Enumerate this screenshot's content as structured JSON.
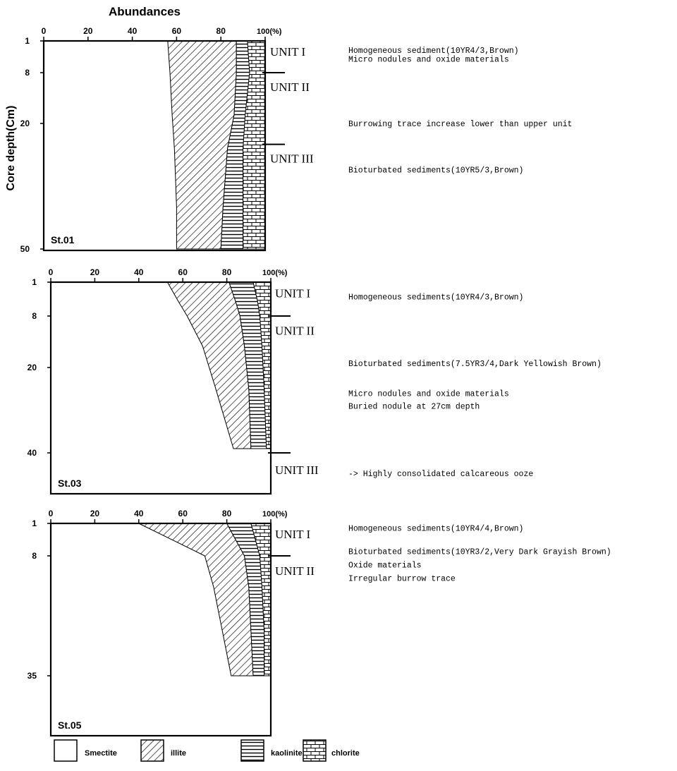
{
  "colors": {
    "ink": "#000000",
    "paper": "#ffffff"
  },
  "pattern_names": {
    "illite": "diagonal-hatch",
    "kaolinite": "horizontal-lines",
    "chlorite": "brick"
  },
  "chart_data": {
    "type": "area",
    "title": "Abundances",
    "ylabel": "Core depth(Cm)",
    "x_unit_label": "(%)",
    "layers": [
      "Smectite",
      "illite",
      "kaolinite",
      "chlorite"
    ],
    "stacking": "cumulative boundaries (%) from left: smectite | illite | kaolinite | chlorite",
    "legend": {
      "placement": "bottom",
      "items": [
        {
          "name": "Smectite",
          "pattern": "blank"
        },
        {
          "name": "illite",
          "pattern": "diagonal-hatch"
        },
        {
          "name": "kaolinite",
          "pattern": "horizontal-lines"
        },
        {
          "name": "chlorite",
          "pattern": "brick"
        }
      ]
    },
    "panels": [
      {
        "station": "St.01",
        "xlim": [
          0,
          100
        ],
        "x_ticks": [
          0,
          20,
          40,
          60,
          80,
          "100(%)"
        ],
        "y_ticks": [
          1,
          8,
          20,
          50
        ],
        "ylim": [
          1,
          50
        ],
        "boundaries": [
          {
            "depth": 1,
            "smectite_top": 56,
            "illite_top": 87,
            "kaolinite_top": 92
          },
          {
            "depth": 8,
            "smectite_top": 57,
            "illite_top": 87,
            "kaolinite_top": 93
          },
          {
            "depth": 18,
            "smectite_top": 58,
            "illite_top": 86,
            "kaolinite_top": 91
          },
          {
            "depth": 26,
            "smectite_top": 59,
            "illite_top": 83,
            "kaolinite_top": 90
          },
          {
            "depth": 40,
            "smectite_top": 60,
            "illite_top": 81,
            "kaolinite_top": 90
          },
          {
            "depth": 50,
            "smectite_top": 60,
            "illite_top": 80,
            "kaolinite_top": 90
          }
        ],
        "units": [
          {
            "label": "UNIT I",
            "top": 1,
            "bottom": 8
          },
          {
            "label": "UNIT II",
            "top": 8,
            "bottom": 25
          },
          {
            "label": "UNIT III",
            "top": 25,
            "bottom": 50
          }
        ],
        "descriptions": [
          {
            "depth": 3,
            "text": "Homogeneous sediment(10YR4/3,Brown)"
          },
          {
            "depth": 5,
            "text": "Micro nodules and oxide materials"
          },
          {
            "depth": 20,
            "text": "Burrowing trace increase lower than upper unit"
          },
          {
            "depth": 31,
            "text": "Bioturbated sediments(10YR5/3,Brown)"
          }
        ]
      },
      {
        "station": "St.03",
        "xlim": [
          0,
          100
        ],
        "x_ticks": [
          0,
          20,
          40,
          60,
          80,
          "100(%)"
        ],
        "y_ticks": [
          1,
          8,
          20,
          40
        ],
        "ylim": [
          1,
          48
        ],
        "boundaries": [
          {
            "depth": 1,
            "smectite_top": 53,
            "illite_top": 81,
            "kaolinite_top": 92
          },
          {
            "depth": 5,
            "smectite_top": 58,
            "illite_top": 84,
            "kaolinite_top": 94
          },
          {
            "depth": 8,
            "smectite_top": 62,
            "illite_top": 86,
            "kaolinite_top": 95
          },
          {
            "depth": 15,
            "smectite_top": 69,
            "illite_top": 88,
            "kaolinite_top": 96
          },
          {
            "depth": 25,
            "smectite_top": 75,
            "illite_top": 90,
            "kaolinite_top": 97
          },
          {
            "depth": 39,
            "smectite_top": 83,
            "illite_top": 91,
            "kaolinite_top": 98
          }
        ],
        "units": [
          {
            "label": "UNIT I",
            "top": 1,
            "bottom": 8
          },
          {
            "label": "UNIT II",
            "top": 8,
            "bottom": 40
          },
          {
            "label": "UNIT III",
            "top": 40,
            "bottom": 48
          }
        ],
        "descriptions": [
          {
            "depth": 4,
            "text": "Homogeneous sediments(10YR4/3,Brown)"
          },
          {
            "depth": 19,
            "text": "Bioturbated sediments(7.5YR3/4,Dark Yellowish Brown)"
          },
          {
            "depth": 26,
            "text": "Micro nodules and oxide materials"
          },
          {
            "depth": 29,
            "text": "Buried nodule at 27cm depth"
          },
          {
            "depth": 44,
            "text": "-> Highly consolidated calcareous ooze"
          }
        ]
      },
      {
        "station": "St.05",
        "xlim": [
          0,
          100
        ],
        "x_ticks": [
          0,
          20,
          40,
          60,
          80,
          "100(%)"
        ],
        "y_ticks": [
          1,
          8,
          35
        ],
        "ylim": [
          1,
          48
        ],
        "boundaries": [
          {
            "depth": 1,
            "smectite_top": 40,
            "illite_top": 80,
            "kaolinite_top": 91
          },
          {
            "depth": 8,
            "smectite_top": 70,
            "illite_top": 88,
            "kaolinite_top": 95
          },
          {
            "depth": 15,
            "smectite_top": 74,
            "illite_top": 90,
            "kaolinite_top": 96
          },
          {
            "depth": 25,
            "smectite_top": 78,
            "illite_top": 91,
            "kaolinite_top": 97
          },
          {
            "depth": 35,
            "smectite_top": 82,
            "illite_top": 92,
            "kaolinite_top": 97
          }
        ],
        "units": [
          {
            "label": "UNIT I",
            "top": 1,
            "bottom": 8
          },
          {
            "label": "UNIT II",
            "top": 8,
            "bottom": 35
          }
        ],
        "descriptions": [
          {
            "depth": 2,
            "text": "Homogeneous sediments(10YR4/4,Brown)"
          },
          {
            "depth": 7,
            "text": "Bioturbated sediments(10YR3/2,Very Dark Grayish Brown)"
          },
          {
            "depth": 10,
            "text": "Oxide materials"
          },
          {
            "depth": 13,
            "text": "Irregular burrow trace"
          }
        ]
      }
    ]
  }
}
